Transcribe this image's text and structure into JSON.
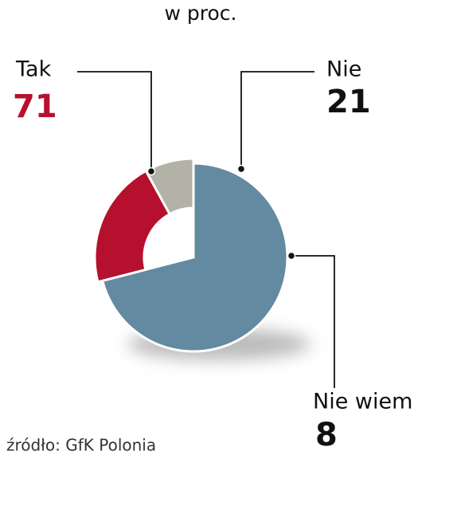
{
  "chart_data": {
    "type": "pie",
    "subtitle": "w proc.",
    "categories": [
      "Tak",
      "Nie",
      "Nie wiem"
    ],
    "values": [
      71,
      21,
      8
    ],
    "colors": [
      "#638aa0",
      "#b5112f",
      "#b2b3a6"
    ],
    "source": "źródło: GfK Polonia"
  }
}
